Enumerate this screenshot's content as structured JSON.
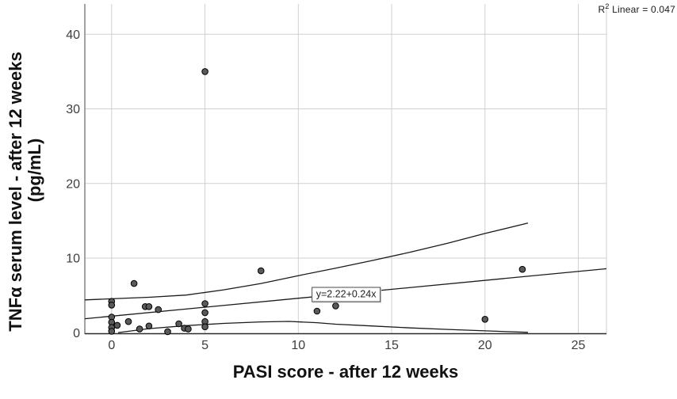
{
  "figure": {
    "background": "#ffffff",
    "r2_label": {
      "base": "R",
      "sup": "2",
      "rest": " Linear = 0.047"
    },
    "x_axis_title": "PASI score - after 12 weeks",
    "y_axis_title_line1": "TNFα serum level - after 12 weeks",
    "y_axis_title_line2": "(pg/mL)"
  },
  "chart_data": {
    "type": "scatter",
    "title": "",
    "xlabel": "PASI score - after 12 weeks",
    "ylabel": "TNFα serum level - after 12 weeks (pg/mL)",
    "xlim": [
      -1.43,
      26.5
    ],
    "ylim": [
      -0.2,
      44.2
    ],
    "x_ticks": [
      0,
      5,
      10,
      15,
      20,
      25
    ],
    "y_ticks": [
      0,
      10,
      20,
      30,
      40
    ],
    "grid": true,
    "legend": "none",
    "r_squared": 0.047,
    "points": [
      [
        0,
        4.2
      ],
      [
        0,
        3.7
      ],
      [
        0,
        2.1
      ],
      [
        0,
        1.4
      ],
      [
        0,
        0.7
      ],
      [
        0,
        0.2
      ],
      [
        0.3,
        1.0
      ],
      [
        0.9,
        1.5
      ],
      [
        1.2,
        6.6
      ],
      [
        1.5,
        0.5
      ],
      [
        1.8,
        3.5
      ],
      [
        2.0,
        3.5
      ],
      [
        2.0,
        0.9
      ],
      [
        2.5,
        3.1
      ],
      [
        3.0,
        0.15
      ],
      [
        3.6,
        1.2
      ],
      [
        3.9,
        0.6
      ],
      [
        4.1,
        0.5
      ],
      [
        5,
        35
      ],
      [
        5,
        3.9
      ],
      [
        5,
        2.7
      ],
      [
        5,
        1.5
      ],
      [
        5,
        0.8
      ],
      [
        8,
        8.3
      ],
      [
        11,
        2.9
      ],
      [
        12,
        3.6
      ],
      [
        20,
        1.8
      ],
      [
        22,
        8.5
      ]
    ],
    "fit_line": {
      "equation": "y=2.22+0.24x",
      "intercept": 2.22,
      "slope": 0.24,
      "x_start": -1.43,
      "x_end": 26.5
    },
    "annotation": {
      "text": "y=2.22+0.24x",
      "x": 12.56,
      "y": 5.12
    },
    "ci_upper": [
      [
        -1.43,
        4.4
      ],
      [
        0,
        4.55
      ],
      [
        2,
        4.75
      ],
      [
        4,
        5.05
      ],
      [
        6,
        5.75
      ],
      [
        8,
        6.6
      ],
      [
        10,
        7.65
      ],
      [
        12,
        8.65
      ],
      [
        14,
        9.7
      ],
      [
        16,
        10.8
      ],
      [
        18,
        12.0
      ],
      [
        20,
        13.3
      ],
      [
        22.3,
        14.7
      ]
    ],
    "ci_lower": [
      [
        0.35,
        0.02
      ],
      [
        2,
        0.55
      ],
      [
        4,
        0.95
      ],
      [
        6,
        1.25
      ],
      [
        8,
        1.45
      ],
      [
        9.5,
        1.52
      ],
      [
        11,
        1.35
      ],
      [
        12,
        1.15
      ],
      [
        14,
        0.9
      ],
      [
        16,
        0.65
      ],
      [
        18,
        0.45
      ],
      [
        20,
        0.25
      ],
      [
        22.3,
        0.05
      ]
    ],
    "colors": {
      "marker_fill": "#5a5a5a",
      "marker_stroke": "#000000",
      "line": "#1a1a1a",
      "grid": "#d0d0d0",
      "axis": "#2b2b2b",
      "spine": "#666666",
      "tick_text": "#3d3d3d"
    }
  }
}
